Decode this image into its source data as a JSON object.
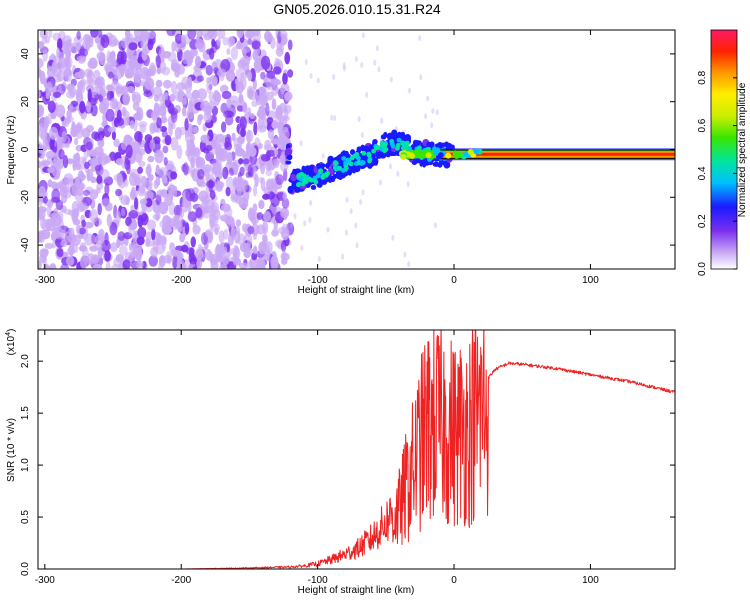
{
  "page_title": "GN05.2026.010.15.31.R24",
  "chart_data": [
    {
      "type": "heatmap",
      "title": "GN05.2026.010.15.31.R24",
      "xlabel": "Height of straight line (km)",
      "ylabel": "Frequency (Hz)",
      "xlim": [
        -305,
        162
      ],
      "ylim": [
        -50,
        50
      ],
      "x_ticks": [
        -300,
        -200,
        -100,
        0,
        100
      ],
      "y_ticks": [
        -40,
        -20,
        0,
        20,
        40
      ],
      "colorbar": {
        "label": "Normalized spectral amplitude",
        "range": [
          0,
          1
        ],
        "ticks": [
          0.0,
          0.2,
          0.4,
          0.6,
          0.8
        ],
        "colormap": [
          "#ffffff",
          "#c9a8f5",
          "#7b2ff0",
          "#1a1aff",
          "#00bfff",
          "#00e5a0",
          "#39e600",
          "#ccee00",
          "#ffee00",
          "#ff9900",
          "#ff2200",
          "#ff1a66"
        ]
      },
      "features": [
        {
          "name": "noise band",
          "x_range": [
            -305,
            -120
          ],
          "freq_range": [
            -50,
            50
          ],
          "amplitude": "low-mid"
        },
        {
          "name": "rising trace",
          "points": [
            [
              -120,
              -14
            ],
            [
              -100,
              -11
            ],
            [
              -80,
              -6
            ],
            [
              -60,
              -2
            ],
            [
              -50,
              2
            ],
            [
              -40,
              3
            ],
            [
              -30,
              -1
            ],
            [
              -15,
              -2
            ],
            [
              0,
              -2
            ]
          ]
        },
        {
          "name": "steady line",
          "x_range": [
            -10,
            162
          ],
          "freq": -2,
          "amplitude": "high"
        }
      ]
    },
    {
      "type": "line",
      "title": "",
      "xlabel": "Height of straight line (km)",
      "ylabel": "SNR (10 * v/v)",
      "y_multiplier": "(x10^4)",
      "multiplier_base": "(x10",
      "multiplier_exp": "4",
      "multiplier_close": ")",
      "xlim": [
        -305,
        162
      ],
      "ylim": [
        0,
        2.3
      ],
      "x_ticks": [
        -300,
        -200,
        -100,
        0,
        100
      ],
      "y_ticks": [
        0.0,
        0.5,
        1.0,
        1.5,
        2.0
      ],
      "y_tick_labels": [
        "0.0",
        "0.5",
        "1.0",
        "1.5",
        "2.0"
      ],
      "series": [
        {
          "color": "#ee2222",
          "x": [
            -305,
            -250,
            -200,
            -150,
            -120,
            -110,
            -100,
            -90,
            -80,
            -70,
            -60,
            -50,
            -40,
            -35,
            -30,
            -25,
            -20,
            -15,
            -10,
            -5,
            0,
            10,
            20,
            30,
            40,
            50,
            75,
            100,
            130,
            162
          ],
          "y": [
            0.0,
            0.0,
            0.0,
            0.01,
            0.02,
            0.03,
            0.05,
            0.09,
            0.14,
            0.2,
            0.3,
            0.45,
            0.65,
            0.9,
            1.1,
            1.35,
            1.55,
            1.6,
            1.62,
            1.55,
            1.48,
            1.55,
            1.75,
            1.92,
            1.98,
            1.97,
            1.93,
            1.87,
            1.8,
            1.7
          ]
        }
      ]
    }
  ]
}
